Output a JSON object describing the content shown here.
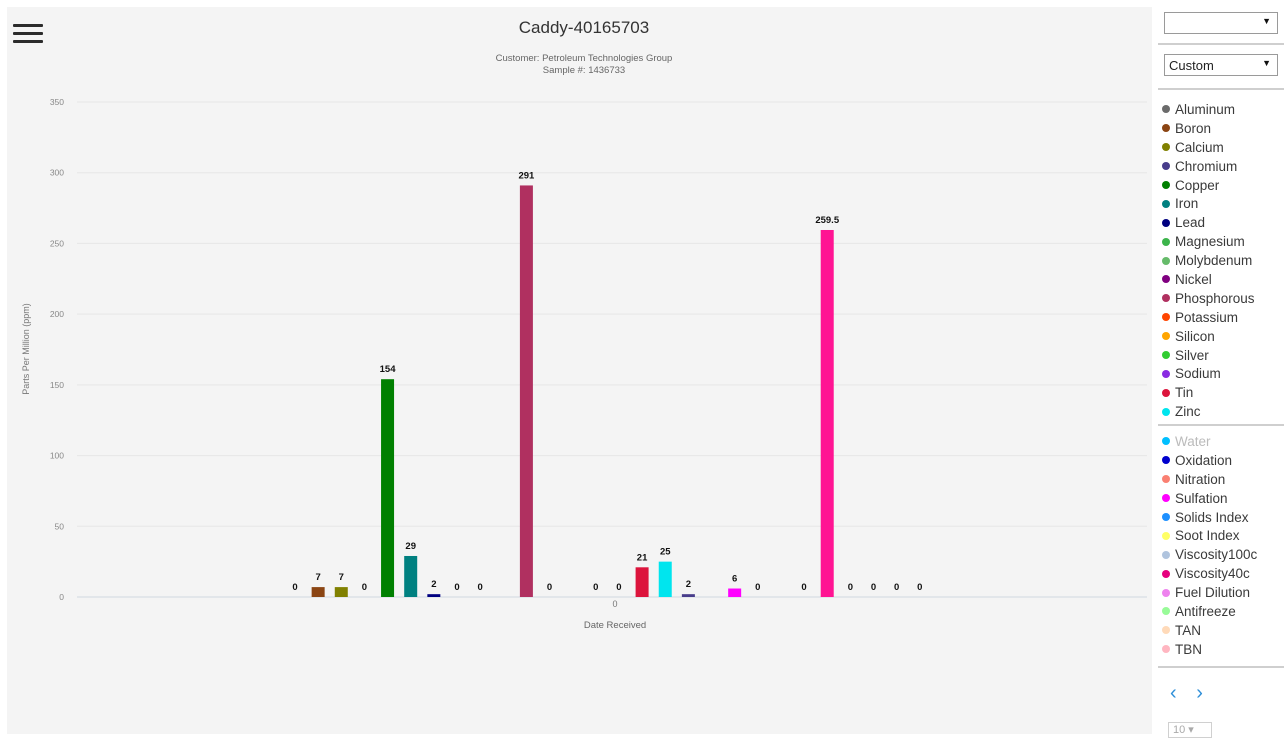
{
  "chart_title": "Caddy-40165703",
  "customer_line": "Customer: Petroleum Technologies Group",
  "sample_line": "Sample #: 1436733",
  "top_select": {
    "value": ""
  },
  "range_select": {
    "value": "Custom"
  },
  "legend_elements": [
    {
      "name": "Aluminum",
      "color": "#6b6b6b"
    },
    {
      "name": "Boron",
      "color": "#8b4513"
    },
    {
      "name": "Calcium",
      "color": "#808000"
    },
    {
      "name": "Chromium",
      "color": "#483d8b"
    },
    {
      "name": "Copper",
      "color": "#008000"
    },
    {
      "name": "Iron",
      "color": "#008080"
    },
    {
      "name": "Lead",
      "color": "#000080"
    },
    {
      "name": "Magnesium",
      "color": "#3cb44b"
    },
    {
      "name": "Molybdenum",
      "color": "#66bb6a"
    },
    {
      "name": "Nickel",
      "color": "#800080"
    },
    {
      "name": "Phosphorous",
      "color": "#b03060"
    },
    {
      "name": "Potassium",
      "color": "#ff4500"
    },
    {
      "name": "Silicon",
      "color": "#ffa500"
    },
    {
      "name": "Silver",
      "color": "#32cd32"
    },
    {
      "name": "Sodium",
      "color": "#8a2be2"
    },
    {
      "name": "Tin",
      "color": "#dc143c"
    },
    {
      "name": "Zinc",
      "color": "#00e5ee"
    }
  ],
  "legend_properties": [
    {
      "name": "Water",
      "color": "#00bfff",
      "hidden": true
    },
    {
      "name": "Oxidation",
      "color": "#0000cd"
    },
    {
      "name": "Nitration",
      "color": "#fa8072"
    },
    {
      "name": "Sulfation",
      "color": "#ff00ff"
    },
    {
      "name": "Solids Index",
      "color": "#1e90ff"
    },
    {
      "name": "Soot Index",
      "color": "#ffff66"
    },
    {
      "name": "Viscosity100c",
      "color": "#b0c4de"
    },
    {
      "name": "Viscosity40c",
      "color": "#e6007e"
    },
    {
      "name": "Fuel Dilution",
      "color": "#ee82ee"
    },
    {
      "name": "Antifreeze",
      "color": "#98fb98"
    },
    {
      "name": "TAN",
      "color": "#ffdab9"
    },
    {
      "name": "TBN",
      "color": "#ffb6c1"
    }
  ],
  "pager": {
    "prev": "‹",
    "next": "›"
  },
  "page_size": "10",
  "chart_data": {
    "type": "bar",
    "title": "Caddy-40165703",
    "subtitle": [
      "Customer: Petroleum Technologies Group",
      "Sample #: 1436733"
    ],
    "xlabel": "Date Received",
    "ylabel": "Parts Per Million (ppm)",
    "categories": [
      "0"
    ],
    "ylim": [
      0,
      350
    ],
    "yticks": [
      0,
      50,
      100,
      150,
      200,
      250,
      300,
      350
    ],
    "series": [
      {
        "name": "Aluminum",
        "value": 0,
        "label": "0",
        "color": "#6b6b6b"
      },
      {
        "name": "Boron",
        "value": 7,
        "label": "7",
        "color": "#8b4513"
      },
      {
        "name": "Calcium",
        "value": 7,
        "label": "7",
        "color": "#808000"
      },
      {
        "name": "Chromium",
        "value": 0,
        "label": "0",
        "color": "#483d8b"
      },
      {
        "name": "Copper",
        "value": 154,
        "label": "154",
        "color": "#008000"
      },
      {
        "name": "Iron",
        "value": 29,
        "label": "29",
        "color": "#008080"
      },
      {
        "name": "Lead",
        "value": 2,
        "label": "2",
        "color": "#000080"
      },
      {
        "name": "Magnesium",
        "value": 0,
        "label": "0",
        "color": "#3cb44b"
      },
      {
        "name": "Molybdenum",
        "value": 0,
        "label": "0",
        "color": "#66bb6a"
      },
      {
        "name": "Nickel",
        "value": 0,
        "label": "",
        "color": "#800080"
      },
      {
        "name": "Phosphorous",
        "value": 291,
        "label": "291",
        "color": "#b03060"
      },
      {
        "name": "Potassium",
        "value": 0,
        "label": "0",
        "color": "#ff4500"
      },
      {
        "name": "Silicon",
        "value": 0,
        "label": "",
        "color": "#ffa500"
      },
      {
        "name": "Silver",
        "value": 0,
        "label": "0",
        "color": "#32cd32"
      },
      {
        "name": "Sodium",
        "value": 0,
        "label": "0",
        "color": "#8a2be2"
      },
      {
        "name": "Tin",
        "value": 21,
        "label": "21",
        "color": "#dc143c"
      },
      {
        "name": "Zinc",
        "value": 25,
        "label": "25",
        "color": "#00e5ee"
      },
      {
        "name": "Oxidation",
        "value": 2,
        "label": "2",
        "color": "#483d8b"
      },
      {
        "name": "Nitration",
        "value": 0,
        "label": "",
        "color": "#fa8072"
      },
      {
        "name": "Sulfation",
        "value": 6,
        "label": "6",
        "color": "#ff00ff"
      },
      {
        "name": "Solids Index",
        "value": 0,
        "label": "0",
        "color": "#1e90ff"
      },
      {
        "name": "Soot Index",
        "value": 0,
        "label": "",
        "color": "#ffff66"
      },
      {
        "name": "Viscosity100c",
        "value": 0,
        "label": "0",
        "color": "#b0c4de"
      },
      {
        "name": "Viscosity40c",
        "value": 259.5,
        "label": "259.5",
        "color": "#ff1493"
      },
      {
        "name": "Fuel Dilution",
        "value": 0,
        "label": "0",
        "color": "#ee82ee"
      },
      {
        "name": "Antifreeze",
        "value": 0,
        "label": "0",
        "color": "#98fb98"
      },
      {
        "name": "TAN",
        "value": 0,
        "label": "0",
        "color": "#ffdab9"
      },
      {
        "name": "TBN",
        "value": 0,
        "label": "0",
        "color": "#ffb6c1"
      }
    ],
    "grid": true,
    "legend": "right"
  }
}
